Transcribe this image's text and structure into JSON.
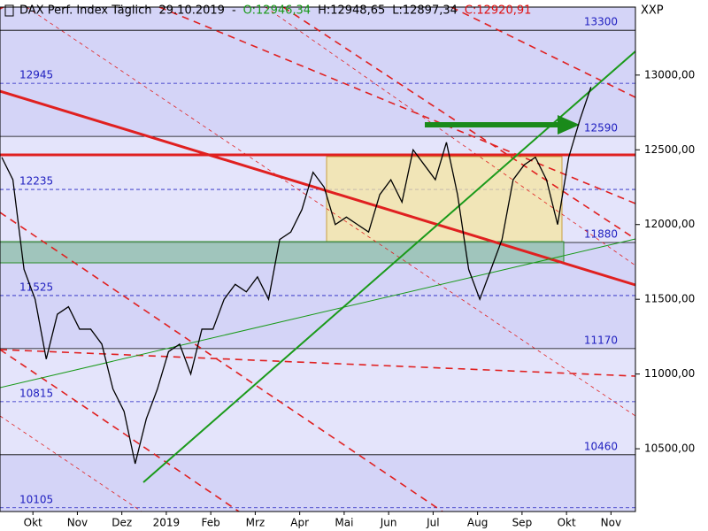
{
  "chart_data": {
    "type": "line",
    "title": "DAX Perf. Index Täglich",
    "date": "29.10.2019",
    "separator": "-",
    "open": "O:12946,34",
    "high": "H:12948,65",
    "low": "L:12897,34",
    "close": "C:12920,91",
    "exchange": "XXP",
    "series": [
      {
        "color": "#000000",
        "x": [
          -0.7,
          -0.45,
          -0.2,
          0.05,
          0.3,
          0.55,
          0.8,
          1.05,
          1.3,
          1.55,
          1.8,
          2.05,
          2.3,
          2.55,
          2.8,
          3.05,
          3.3,
          3.55,
          3.8,
          4.05,
          4.3,
          4.55,
          4.8,
          5.05,
          5.3,
          5.55,
          5.8,
          6.05,
          6.3,
          6.55,
          6.8,
          7.05,
          7.3,
          7.55,
          7.8,
          8.05,
          8.3,
          8.55,
          8.8,
          9.05,
          9.3,
          9.55,
          9.8,
          10.05,
          10.3,
          10.55,
          10.8,
          11.05,
          11.3,
          11.55,
          11.8,
          12.05,
          12.3,
          12.55
        ],
        "values": [
          12450,
          12300,
          11700,
          11500,
          11100,
          11400,
          11450,
          11300,
          11300,
          11200,
          10900,
          10750,
          10400,
          10700,
          10900,
          11150,
          11200,
          11000,
          11300,
          11300,
          11500,
          11600,
          11550,
          11650,
          11500,
          11900,
          11950,
          12100,
          12350,
          12250,
          12000,
          12050,
          12000,
          11950,
          12200,
          12300,
          12150,
          12500,
          12400,
          12300,
          12550,
          12200,
          11700,
          11500,
          11700,
          11900,
          12300,
          12400,
          12450,
          12300,
          12000,
          12450,
          12700,
          12920
        ]
      }
    ],
    "levels": [
      13300,
      12945,
      12590,
      12235,
      11880,
      11525,
      11170,
      10815,
      10460,
      10105
    ],
    "xlim": [
      -0.74,
      13.55
    ],
    "xticks": [
      {
        "value": 0,
        "label": "Okt"
      },
      {
        "value": 1,
        "label": "Nov"
      },
      {
        "value": 2,
        "label": "Dez"
      },
      {
        "value": 3,
        "label": "2019"
      },
      {
        "value": 4,
        "label": "Feb"
      },
      {
        "value": 5,
        "label": "Mrz"
      },
      {
        "value": 6,
        "label": "Apr"
      },
      {
        "value": 7,
        "label": "Mai"
      },
      {
        "value": 8,
        "label": "Jun"
      },
      {
        "value": 9,
        "label": "Jul"
      },
      {
        "value": 10,
        "label": "Aug"
      },
      {
        "value": 11,
        "label": "Sep"
      },
      {
        "value": 12,
        "label": "Okt"
      },
      {
        "value": 13,
        "label": "Nov"
      }
    ],
    "ylim": [
      10080,
      13455
    ],
    "yticks": [
      {
        "value": 10500,
        "label": "10500,00"
      },
      {
        "value": 11000,
        "label": "11000,00"
      },
      {
        "value": 11500,
        "label": "11500,00"
      },
      {
        "value": 12000,
        "label": "12000,00"
      },
      {
        "value": 12500,
        "label": "12500,00"
      },
      {
        "value": 13000,
        "label": "13000,00"
      }
    ]
  }
}
